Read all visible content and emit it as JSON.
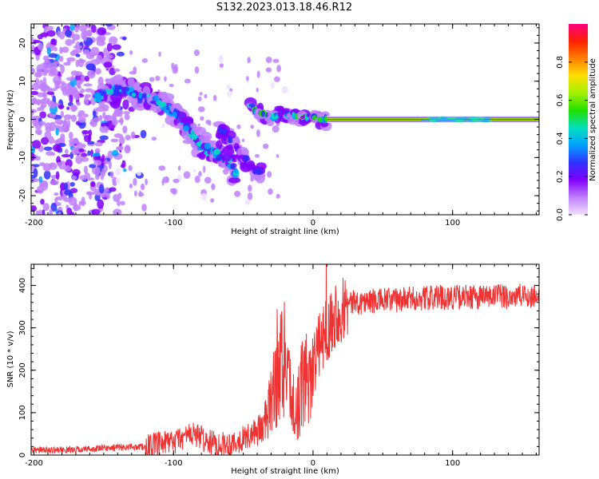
{
  "figure_title": "S132.2023.013.18.46.R12",
  "chart_data": [
    {
      "type": "heatmap",
      "panel": "top",
      "xlabel": "Height of straight line (km)",
      "ylabel": "Frequency (Hz)",
      "xlim": [
        -202,
        162
      ],
      "ylim": [
        -25,
        25
      ],
      "xticks": [
        -200,
        -100,
        0,
        100
      ],
      "yticks": [
        -20,
        -10,
        0,
        10,
        20
      ],
      "colorbar": {
        "label": "Normalized spectral amplitude",
        "range": [
          0.0,
          1.0
        ],
        "ticks": [
          0.0,
          0.2,
          0.4,
          0.6,
          0.8
        ],
        "colormap": [
          "#f0e0ff",
          "#c080ff",
          "#8000ff",
          "#3030ff",
          "#00a0ff",
          "#00e0c0",
          "#20e000",
          "#a0f000",
          "#ffe000",
          "#ff8000",
          "#ff2000",
          "#ff0080"
        ]
      },
      "features": [
        {
          "name": "noise_cloud",
          "x_range": [
            -202,
            -120
          ],
          "freq_range": [
            -25,
            25
          ],
          "amplitude": [
            0.05,
            0.35
          ]
        },
        {
          "name": "main_trace",
          "points": [
            [
              -155,
              6
            ],
            [
              -145,
              7
            ],
            [
              -135,
              8
            ],
            [
              -125,
              6
            ],
            [
              -115,
              5
            ],
            [
              -108,
              4
            ],
            [
              -100,
              2
            ],
            [
              -92,
              -1
            ],
            [
              -85,
              -5
            ],
            [
              -78,
              -7.5
            ],
            [
              -70,
              -9
            ],
            [
              -62,
              -10.5
            ],
            [
              -55,
              -14
            ]
          ],
          "amplitude": [
            0.2,
            0.45
          ]
        },
        {
          "name": "secondary_trace",
          "points": [
            [
              -68,
              -2
            ],
            [
              -60,
              -5
            ],
            [
              -52,
              -9
            ],
            [
              -45,
              -12
            ],
            [
              -38,
              -14
            ]
          ],
          "amplitude": [
            0.15,
            0.3
          ]
        },
        {
          "name": "tertiary_trace",
          "points": [
            [
              -45,
              4
            ],
            [
              -40,
              2
            ],
            [
              -30,
              0.5
            ],
            [
              -20,
              1.5
            ],
            [
              -15,
              1
            ],
            [
              -8,
              0.5
            ],
            [
              0,
              1
            ],
            [
              5,
              0
            ],
            [
              10,
              0
            ]
          ],
          "amplitude": [
            0.2,
            0.6
          ]
        },
        {
          "name": "carrier_line",
          "x_range": [
            10,
            162
          ],
          "frequency": 0,
          "amplitude": 1.0
        },
        {
          "name": "carrier_broadening",
          "x_range": [
            80,
            125
          ],
          "frequency": 0,
          "amplitude": 0.35
        }
      ]
    },
    {
      "type": "line",
      "panel": "bottom",
      "xlabel": "Height of straight line (km)",
      "ylabel": "SNR (10 * v/v)",
      "xlim": [
        -202,
        162
      ],
      "ylim": [
        0,
        450
      ],
      "xticks": [
        -200,
        -100,
        0,
        100
      ],
      "yticks": [
        0,
        100,
        200,
        300,
        400
      ],
      "color": "#ee3333",
      "series": [
        {
          "x": [
            -200,
            -180,
            -160,
            -140,
            -120,
            -110,
            -100,
            -95,
            -90,
            -85,
            -80,
            -75,
            -70,
            -65,
            -60,
            -55,
            -50,
            -45,
            -40,
            -35,
            -30,
            -28,
            -26,
            -24,
            -22,
            -20,
            -18,
            -16,
            -14,
            -12,
            -10,
            -8,
            -6,
            -4,
            -2,
            0,
            2,
            4,
            6,
            8,
            10,
            12,
            15,
            20,
            25,
            30,
            40,
            50,
            60,
            70,
            80,
            90,
            100,
            110,
            120,
            130,
            140,
            150,
            160
          ],
          "y": [
            12,
            12,
            14,
            18,
            20,
            25,
            30,
            40,
            45,
            50,
            40,
            30,
            28,
            25,
            28,
            30,
            40,
            45,
            60,
            70,
            120,
            170,
            200,
            230,
            210,
            190,
            160,
            140,
            120,
            110,
            130,
            160,
            180,
            190,
            200,
            210,
            230,
            250,
            270,
            290,
            300,
            310,
            330,
            345,
            355,
            360,
            362,
            365,
            365,
            368,
            370,
            372,
            372,
            372,
            373,
            374,
            374,
            375,
            375
          ]
        }
      ]
    }
  ]
}
